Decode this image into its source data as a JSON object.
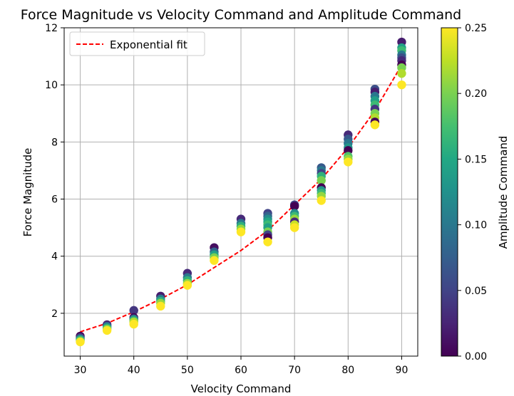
{
  "chart_data": {
    "type": "scatter",
    "title": "Force Magnitude vs Velocity Command and Amplitude Command",
    "xlabel": "Velocity Command",
    "ylabel": "Force Magnitude",
    "xlim": [
      27,
      93
    ],
    "ylim": [
      0.5,
      12
    ],
    "xticks": [
      30,
      40,
      50,
      60,
      70,
      80,
      90
    ],
    "yticks": [
      2,
      4,
      6,
      8,
      10,
      12
    ],
    "grid": true,
    "colorbar": {
      "label": "Amplitude Command",
      "range": [
        0.0,
        0.25
      ],
      "ticks": [
        "0.00",
        "0.05",
        "0.10",
        "0.15",
        "0.20",
        "0.25"
      ],
      "colormap": "viridis"
    },
    "legend": {
      "position": "top-left",
      "entries": [
        "Exponential fit"
      ]
    },
    "fit": {
      "name": "Exponential fit",
      "color": "#ff0000",
      "style": "dashed",
      "x": [
        30,
        35,
        40,
        45,
        50,
        55,
        60,
        65,
        70,
        75,
        80,
        85,
        90
      ],
      "y": [
        1.35,
        1.65,
        2.05,
        2.5,
        3.0,
        3.6,
        4.2,
        4.9,
        5.8,
        6.7,
        7.8,
        9.1,
        10.7
      ]
    },
    "points": [
      {
        "x": 30,
        "y": 1.2,
        "c": 0.0
      },
      {
        "x": 30,
        "y": 1.15,
        "c": 0.04
      },
      {
        "x": 30,
        "y": 1.1,
        "c": 0.12
      },
      {
        "x": 30,
        "y": 1.05,
        "c": 0.18
      },
      {
        "x": 30,
        "y": 1.0,
        "c": 0.25
      },
      {
        "x": 35,
        "y": 1.6,
        "c": 0.02
      },
      {
        "x": 35,
        "y": 1.55,
        "c": 0.08
      },
      {
        "x": 35,
        "y": 1.5,
        "c": 0.14
      },
      {
        "x": 35,
        "y": 1.45,
        "c": 0.2
      },
      {
        "x": 35,
        "y": 1.4,
        "c": 0.25
      },
      {
        "x": 40,
        "y": 2.1,
        "c": 0.04
      },
      {
        "x": 40,
        "y": 1.85,
        "c": 0.0
      },
      {
        "x": 40,
        "y": 1.8,
        "c": 0.1
      },
      {
        "x": 40,
        "y": 1.75,
        "c": 0.16
      },
      {
        "x": 40,
        "y": 1.7,
        "c": 0.22
      },
      {
        "x": 40,
        "y": 1.62,
        "c": 0.25
      },
      {
        "x": 45,
        "y": 2.6,
        "c": 0.02
      },
      {
        "x": 45,
        "y": 2.5,
        "c": 0.1
      },
      {
        "x": 45,
        "y": 2.42,
        "c": 0.16
      },
      {
        "x": 45,
        "y": 2.35,
        "c": 0.21
      },
      {
        "x": 45,
        "y": 2.25,
        "c": 0.25
      },
      {
        "x": 50,
        "y": 3.4,
        "c": 0.03
      },
      {
        "x": 50,
        "y": 3.25,
        "c": 0.1
      },
      {
        "x": 50,
        "y": 3.15,
        "c": 0.16
      },
      {
        "x": 50,
        "y": 3.05,
        "c": 0.21
      },
      {
        "x": 50,
        "y": 2.98,
        "c": 0.25
      },
      {
        "x": 55,
        "y": 4.3,
        "c": 0.01
      },
      {
        "x": 55,
        "y": 4.15,
        "c": 0.08
      },
      {
        "x": 55,
        "y": 4.05,
        "c": 0.14
      },
      {
        "x": 55,
        "y": 3.95,
        "c": 0.2
      },
      {
        "x": 55,
        "y": 3.85,
        "c": 0.25
      },
      {
        "x": 60,
        "y": 5.3,
        "c": 0.03
      },
      {
        "x": 60,
        "y": 5.15,
        "c": 0.1
      },
      {
        "x": 60,
        "y": 5.05,
        "c": 0.16
      },
      {
        "x": 60,
        "y": 4.95,
        "c": 0.21
      },
      {
        "x": 60,
        "y": 4.85,
        "c": 0.25
      },
      {
        "x": 65,
        "y": 5.5,
        "c": 0.05
      },
      {
        "x": 65,
        "y": 5.4,
        "c": 0.08
      },
      {
        "x": 65,
        "y": 5.3,
        "c": 0.12
      },
      {
        "x": 65,
        "y": 5.2,
        "c": 0.15
      },
      {
        "x": 65,
        "y": 5.1,
        "c": 0.17
      },
      {
        "x": 65,
        "y": 5.0,
        "c": 0.14
      },
      {
        "x": 65,
        "y": 4.85,
        "c": 0.2
      },
      {
        "x": 65,
        "y": 4.75,
        "c": 0.05
      },
      {
        "x": 65,
        "y": 4.65,
        "c": 0.0
      },
      {
        "x": 65,
        "y": 4.5,
        "c": 0.25
      },
      {
        "x": 70,
        "y": 5.8,
        "c": 0.05
      },
      {
        "x": 70,
        "y": 5.75,
        "c": 0.0
      },
      {
        "x": 70,
        "y": 5.5,
        "c": 0.12
      },
      {
        "x": 70,
        "y": 5.4,
        "c": 0.17
      },
      {
        "x": 70,
        "y": 5.3,
        "c": 0.21
      },
      {
        "x": 70,
        "y": 5.2,
        "c": 0.03
      },
      {
        "x": 70,
        "y": 5.1,
        "c": 0.23
      },
      {
        "x": 70,
        "y": 5.0,
        "c": 0.25
      },
      {
        "x": 75,
        "y": 7.1,
        "c": 0.07
      },
      {
        "x": 75,
        "y": 7.0,
        "c": 0.1
      },
      {
        "x": 75,
        "y": 6.9,
        "c": 0.05
      },
      {
        "x": 75,
        "y": 6.8,
        "c": 0.16
      },
      {
        "x": 75,
        "y": 6.65,
        "c": 0.2
      },
      {
        "x": 75,
        "y": 6.4,
        "c": 0.0
      },
      {
        "x": 75,
        "y": 6.3,
        "c": 0.13
      },
      {
        "x": 75,
        "y": 6.2,
        "c": 0.17
      },
      {
        "x": 75,
        "y": 6.1,
        "c": 0.21
      },
      {
        "x": 75,
        "y": 5.95,
        "c": 0.25
      },
      {
        "x": 80,
        "y": 8.25,
        "c": 0.03
      },
      {
        "x": 80,
        "y": 8.1,
        "c": 0.07
      },
      {
        "x": 80,
        "y": 7.95,
        "c": 0.1
      },
      {
        "x": 80,
        "y": 7.8,
        "c": 0.13
      },
      {
        "x": 80,
        "y": 7.7,
        "c": 0.0
      },
      {
        "x": 80,
        "y": 7.5,
        "c": 0.18
      },
      {
        "x": 80,
        "y": 7.4,
        "c": 0.21
      },
      {
        "x": 80,
        "y": 7.3,
        "c": 0.25
      },
      {
        "x": 85,
        "y": 9.85,
        "c": 0.06
      },
      {
        "x": 85,
        "y": 9.75,
        "c": 0.02
      },
      {
        "x": 85,
        "y": 9.6,
        "c": 0.1
      },
      {
        "x": 85,
        "y": 9.45,
        "c": 0.14
      },
      {
        "x": 85,
        "y": 9.3,
        "c": 0.17
      },
      {
        "x": 85,
        "y": 9.15,
        "c": 0.04
      },
      {
        "x": 85,
        "y": 9.0,
        "c": 0.2
      },
      {
        "x": 85,
        "y": 8.85,
        "c": 0.22
      },
      {
        "x": 85,
        "y": 8.7,
        "c": 0.0
      },
      {
        "x": 85,
        "y": 8.6,
        "c": 0.25
      },
      {
        "x": 90,
        "y": 11.5,
        "c": 0.02
      },
      {
        "x": 90,
        "y": 11.3,
        "c": 0.14
      },
      {
        "x": 90,
        "y": 11.2,
        "c": 0.17
      },
      {
        "x": 90,
        "y": 11.05,
        "c": 0.1
      },
      {
        "x": 90,
        "y": 10.95,
        "c": 0.06
      },
      {
        "x": 90,
        "y": 10.85,
        "c": 0.03
      },
      {
        "x": 90,
        "y": 10.7,
        "c": 0.0
      },
      {
        "x": 90,
        "y": 10.6,
        "c": 0.2
      },
      {
        "x": 90,
        "y": 10.4,
        "c": 0.22
      },
      {
        "x": 90,
        "y": 10.0,
        "c": 0.25
      }
    ]
  }
}
